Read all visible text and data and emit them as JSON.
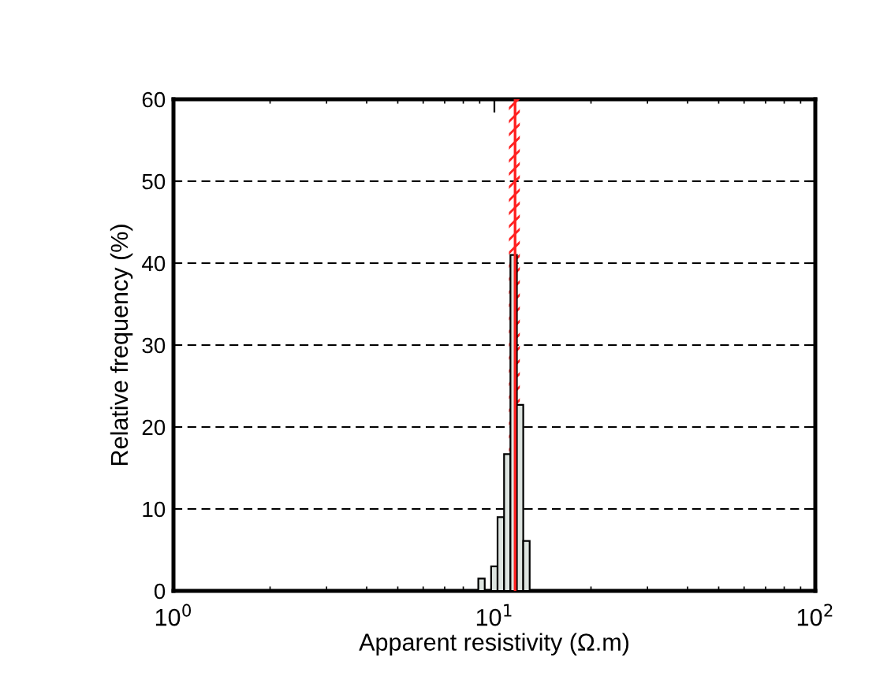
{
  "chart_data": {
    "type": "histogram",
    "xlabel": "Apparent resistivity (Ω.m)",
    "ylabel": "Relative frequency (%)",
    "bins": [
      8.91,
      9.33,
      9.77,
      10.23,
      10.72,
      11.22,
      11.75,
      12.3,
      12.88
    ],
    "values": [
      1.5,
      0,
      3,
      9,
      16.7,
      41,
      22.7,
      6.1
    ],
    "color": "#dde4e0",
    "log": "x",
    "xlim": [
      1,
      100
    ],
    "xticks": [
      {
        "value": 1,
        "label": "10$^{0}$"
      },
      {
        "value": 10,
        "label": "10$^{1}$"
      },
      {
        "value": 100,
        "label": "10$^{2}$"
      }
    ],
    "ylim": [
      0,
      60
    ],
    "yticks": [
      0,
      10,
      20,
      30,
      40,
      50,
      60
    ],
    "grid": "y",
    "ref_lines": [
      {
        "axis": "x",
        "value": 11.6,
        "color": "#ff2020",
        "line_style": "solid"
      }
    ],
    "bands": [
      {
        "axis": "x",
        "from": 11.1,
        "to": 12.0,
        "color": "#ff2020"
      }
    ]
  }
}
